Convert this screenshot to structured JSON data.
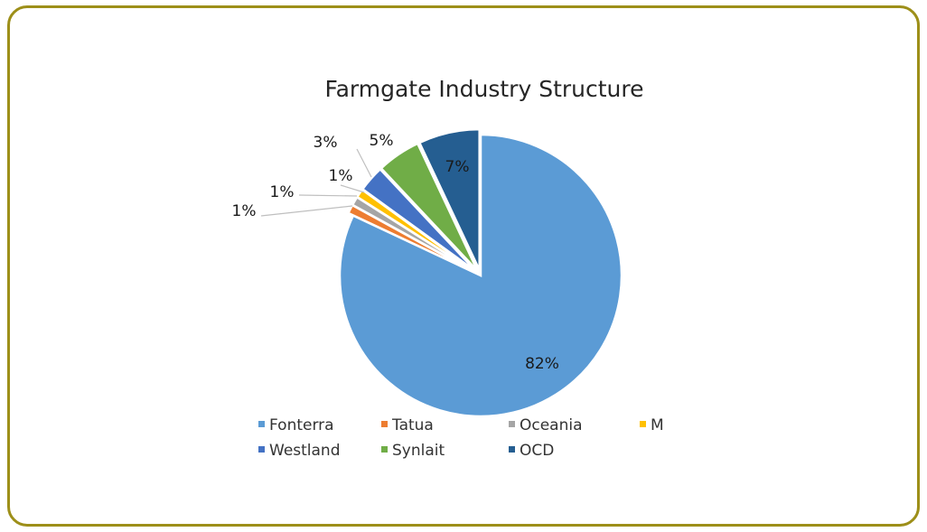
{
  "chart_data": {
    "type": "pie",
    "title": "Farmgate Industry Structure",
    "categories": [
      "Fonterra",
      "Tatua",
      "Oceania",
      "M",
      "Westland",
      "Synlait",
      "OCD"
    ],
    "values": [
      82,
      1,
      1,
      1,
      3,
      5,
      7
    ],
    "data_labels": [
      "82%",
      "1%",
      "1%",
      "1%",
      "3%",
      "5%",
      "7%"
    ],
    "colors": [
      "#5b9bd5",
      "#ed7d31",
      "#a5a5a5",
      "#ffc000",
      "#4472c4",
      "#70ad47",
      "#255e91"
    ],
    "legend_position": "bottom",
    "legend_entries": [
      "Fonterra",
      "Tatua",
      "Oceania",
      "M",
      "Westland",
      "Synlait",
      "OCD"
    ]
  }
}
